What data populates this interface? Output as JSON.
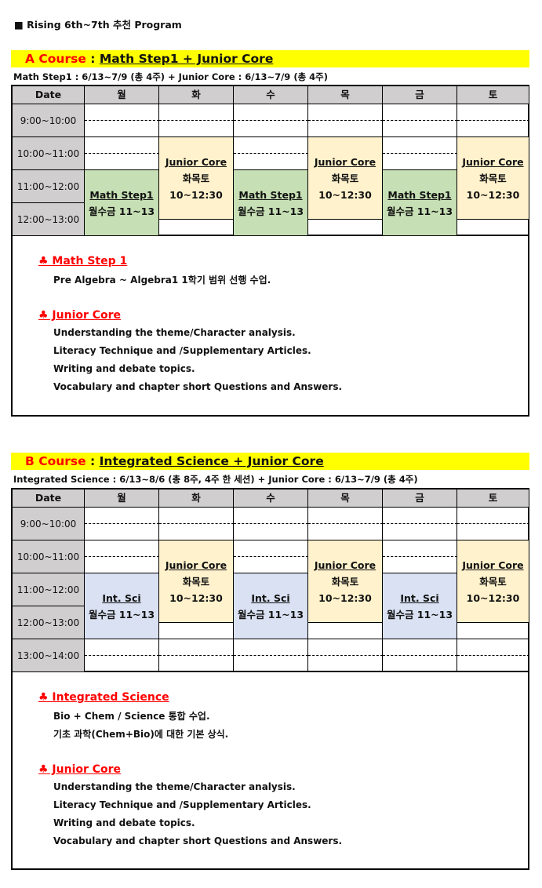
{
  "page_title": "■ Rising 6th~7th 추천 Program",
  "days": [
    "월",
    "화",
    "수",
    "목",
    "금",
    "토"
  ],
  "date_header": "Date",
  "colors": {
    "header": "#d0cece",
    "math": "#c6dfb4",
    "junior": "#fff2cc",
    "science": "#d9e1f2",
    "course_bar": "#ffff00"
  },
  "courseA": {
    "label": "A Course",
    "sep": " : ",
    "name": "Math Step1 + Junior Core",
    "subtitle": "Math Step1 : 6/13~7/9 (총 4주) + Junior Core : 6/13~7/9 (총 4주)",
    "times": [
      "9:00~10:00",
      "10:00~11:00",
      "11:00~12:00",
      "12:00~13:00"
    ],
    "blocks": [
      {
        "title": "Math Step1",
        "days_text": "월수금 11~13",
        "time": "",
        "day_idx": [
          0,
          2,
          4
        ],
        "start": 11,
        "end": 13,
        "kind": "math"
      },
      {
        "title": "Junior Core",
        "days_text": "화목토",
        "time": "10~12:30",
        "day_idx": [
          1,
          3,
          5
        ],
        "start": 10,
        "end": 12.5,
        "kind": "junior"
      }
    ],
    "notes": [
      {
        "heading": "♣ Math Step 1",
        "lines": [
          "Pre Algebra ~ Algebra1 1학기 범위 선행 수업."
        ]
      },
      {
        "heading": "♣ Junior Core",
        "lines": [
          "Understanding the theme/Character analysis.",
          "Literacy Technique and /Supplementary Articles.",
          "Writing and debate topics.",
          "Vocabulary and chapter short Questions and Answers."
        ]
      }
    ]
  },
  "courseB": {
    "label": "B Course",
    "sep": " : ",
    "name": "Integrated Science + Junior Core",
    "subtitle": "Integrated Science : 6/13~8/6 (총 8주, 4주 한 세션) + Junior Core : 6/13~7/9 (총 4주)",
    "times": [
      "9:00~10:00",
      "10:00~11:00",
      "11:00~12:00",
      "12:00~13:00",
      "13:00~14:00"
    ],
    "blocks": [
      {
        "title": "Int. Sci",
        "days_text": "월수금 11~13",
        "time": "",
        "day_idx": [
          0,
          2,
          4
        ],
        "start": 11,
        "end": 13,
        "kind": "science"
      },
      {
        "title": "Junior Core",
        "days_text": "화목토",
        "time": "10~12:30",
        "day_idx": [
          1,
          3,
          5
        ],
        "start": 10,
        "end": 12.5,
        "kind": "junior"
      }
    ],
    "notes": [
      {
        "heading": "♣ Integrated Science",
        "lines": [
          "Bio + Chem / Science 통합 수업.",
          "기초 과학(Chem+Bio)에 대한 기본 상식."
        ]
      },
      {
        "heading": "♣ Junior Core",
        "lines": [
          "Understanding the theme/Character analysis.",
          "Literacy Technique and /Supplementary Articles.",
          "Writing and debate topics.",
          "Vocabulary and chapter short Questions and Answers."
        ]
      }
    ]
  }
}
